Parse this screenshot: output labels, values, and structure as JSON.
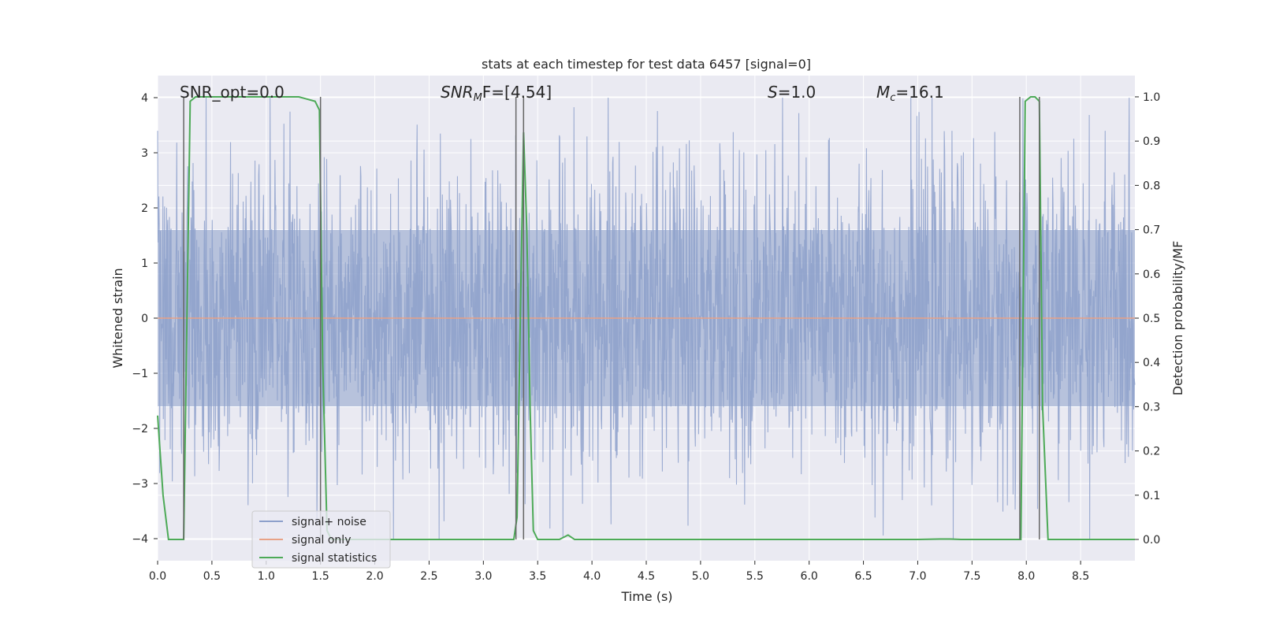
{
  "chart_data": {
    "type": "line",
    "title": "stats at each timestep for test data 6457 [signal=0]",
    "xlabel": "Time (s)",
    "ylabel": "Whitened strain",
    "ylabel_right": "Detection probability/MF",
    "xlim": [
      0.0,
      9.0
    ],
    "ylim": [
      -4.4,
      4.4
    ],
    "ylim_right": [
      -0.048,
      1.048
    ],
    "xticks": [
      "0.0",
      "0.5",
      "1.0",
      "1.5",
      "2.0",
      "2.5",
      "3.0",
      "3.5",
      "4.0",
      "4.5",
      "5.0",
      "5.5",
      "6.0",
      "6.5",
      "7.0",
      "7.5",
      "8.0",
      "8.5"
    ],
    "yticks": [
      "4",
      "3",
      "2",
      "1",
      "0",
      "−1",
      "−2",
      "−3",
      "−4"
    ],
    "yticks_right": [
      "1.0",
      "0.9",
      "0.8",
      "0.7",
      "0.6",
      "0.5",
      "0.4",
      "0.3",
      "0.2",
      "0.1",
      "0.0"
    ],
    "grid": true,
    "legend_position": "lower-left",
    "annotations": {
      "snr_opt": "SNR_opt=0.0",
      "snr_mf_sym": "SNR",
      "snr_mf_sub": "M",
      "snr_mf_rest": "F=[4.54]",
      "s_sym": "S",
      "s_rest": "=1.0",
      "mc_sym": "M",
      "mc_sub": "c",
      "mc_rest": "=16.1"
    },
    "series": [
      {
        "name": "signal+ noise",
        "color": "#8da0cb",
        "description_values": "whitened strain noise, ~N(0,1) dense samples",
        "x_range": [
          0.0,
          9.0
        ],
        "envelope": {
          "core_low": -1.6,
          "core_high": 1.6,
          "extreme_low": -4.0,
          "extreme_high": 4.0
        }
      },
      {
        "name": "signal only",
        "color": "#e8a287",
        "x": [
          0.0,
          9.0
        ],
        "y": [
          0.0,
          0.0
        ]
      },
      {
        "name": "signal statistics",
        "color": "#4daa57",
        "axis": "right",
        "x": [
          0.0,
          0.05,
          0.1,
          0.15,
          0.2,
          0.24,
          0.27,
          0.3,
          0.35,
          0.5,
          1.0,
          1.3,
          1.45,
          1.49,
          1.52,
          1.56,
          1.6,
          1.7,
          2.0,
          2.5,
          3.0,
          3.28,
          3.31,
          3.34,
          3.37,
          3.4,
          3.43,
          3.46,
          3.5,
          3.6,
          3.7,
          3.78,
          3.84,
          3.9,
          4.0,
          5.0,
          6.0,
          7.0,
          7.2,
          7.3,
          7.4,
          7.7,
          7.9,
          7.95,
          7.99,
          8.04,
          8.08,
          8.12,
          8.15,
          8.2,
          8.5,
          9.0
        ],
        "y": [
          0.28,
          0.1,
          0.0,
          0.0,
          0.0,
          0.0,
          0.5,
          0.99,
          1.0,
          1.0,
          1.0,
          1.0,
          0.99,
          0.97,
          0.4,
          0.02,
          0.0,
          0.0,
          0.0,
          0.0,
          0.0,
          0.0,
          0.05,
          0.5,
          0.92,
          0.7,
          0.3,
          0.02,
          0.0,
          0.0,
          0.0,
          0.01,
          0.0,
          0.0,
          0.0,
          0.0,
          0.0,
          0.0,
          0.001,
          0.001,
          0.0,
          0.0,
          0.0,
          0.0,
          0.99,
          1.0,
          1.0,
          0.99,
          0.3,
          0.0,
          0.0,
          0.0
        ]
      }
    ],
    "vlines": [
      0.24,
      1.5,
      3.3,
      3.37,
      7.94,
      8.12
    ],
    "vline_color": "#666666"
  }
}
